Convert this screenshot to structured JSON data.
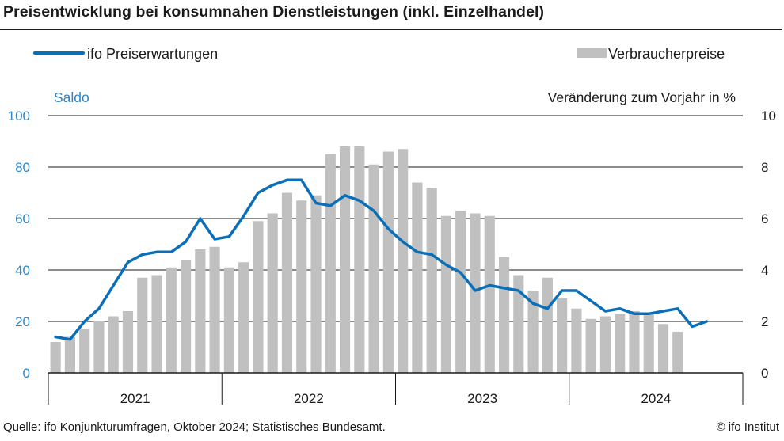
{
  "title": "Preisentwicklung bei konsumnahen Dienstleistungen (inkl. Einzelhandel)",
  "footer": {
    "source": "Quelle: ifo Konjunkturumfragen, Oktober 2024; Statistisches Bundesamt.",
    "copyright": "© ifo Institut"
  },
  "colors": {
    "line": "#0a6fb8",
    "bars": "#c0c0c0",
    "left_axis": "#2e86c8",
    "text": "#1a1a1a"
  },
  "chart_data": {
    "type": "bar+line",
    "legend": {
      "placement": "top",
      "line_label": "ifo Preiserwartungen",
      "bar_label": "Verbraucherpreise"
    },
    "y_left": {
      "label": "Saldo",
      "range": [
        0,
        100
      ],
      "ticks": [
        "0",
        "20",
        "40",
        "60",
        "80",
        "100"
      ]
    },
    "y_right": {
      "label": "Veränderung zum Vorjahr in %",
      "range": [
        0,
        10
      ],
      "ticks": [
        "0",
        "2",
        "4",
        "6",
        "8",
        "10"
      ]
    },
    "x_labels": [
      "2021",
      "2022",
      "2023",
      "2024"
    ],
    "grid": true,
    "months": [
      "2021-01",
      "2021-02",
      "2021-03",
      "2021-04",
      "2021-05",
      "2021-06",
      "2021-07",
      "2021-08",
      "2021-09",
      "2021-10",
      "2021-11",
      "2021-12",
      "2022-01",
      "2022-02",
      "2022-03",
      "2022-04",
      "2022-05",
      "2022-06",
      "2022-07",
      "2022-08",
      "2022-09",
      "2022-10",
      "2022-11",
      "2022-12",
      "2023-01",
      "2023-02",
      "2023-03",
      "2023-04",
      "2023-05",
      "2023-06",
      "2023-07",
      "2023-08",
      "2023-09",
      "2023-10",
      "2023-11",
      "2023-12",
      "2024-01",
      "2024-02",
      "2024-03",
      "2024-04",
      "2024-05",
      "2024-06",
      "2024-07",
      "2024-08",
      "2024-09",
      "2024-10"
    ],
    "series": [
      {
        "name": "Verbraucherpreise",
        "axis": "right",
        "kind": "bar",
        "values": [
          1.2,
          1.4,
          1.7,
          2.0,
          2.2,
          2.4,
          3.7,
          3.8,
          4.1,
          4.4,
          4.8,
          4.9,
          4.1,
          4.3,
          5.9,
          6.2,
          7.0,
          6.7,
          6.9,
          8.5,
          8.8,
          8.8,
          8.1,
          8.6,
          8.7,
          7.4,
          7.2,
          6.1,
          6.3,
          6.2,
          6.1,
          4.5,
          3.8,
          3.2,
          3.7,
          2.9,
          2.5,
          2.1,
          2.2,
          2.3,
          2.4,
          2.3,
          1.9,
          1.6
        ]
      },
      {
        "name": "ifo Preiserwartungen",
        "axis": "left",
        "kind": "line",
        "values": [
          14,
          13,
          20,
          25,
          34,
          43,
          46,
          47,
          47,
          51,
          60,
          52,
          53,
          61,
          70,
          73,
          75,
          75,
          66,
          65,
          69,
          67,
          63,
          56,
          51,
          47,
          46,
          42,
          39,
          32,
          34,
          33,
          32,
          27,
          25,
          32,
          32,
          28,
          24,
          25,
          23,
          23,
          24,
          25,
          18,
          20
        ]
      }
    ]
  }
}
